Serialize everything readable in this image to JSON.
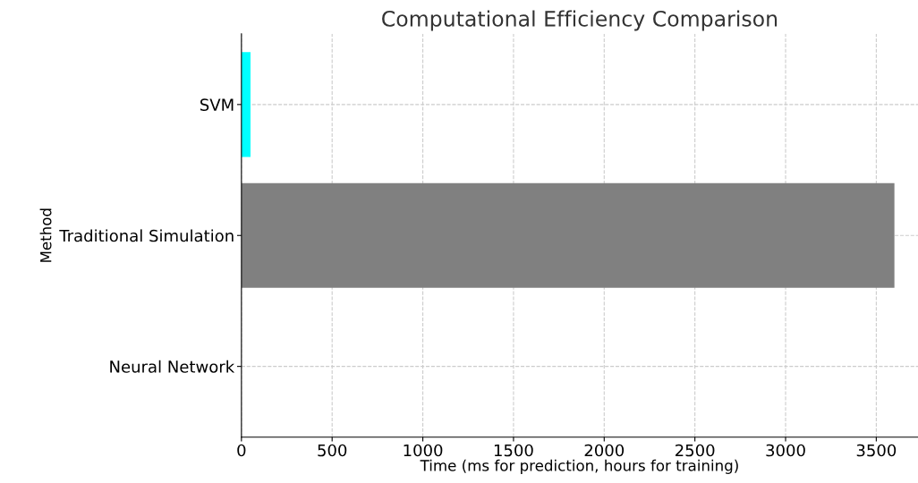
{
  "chart_data": {
    "type": "bar",
    "orientation": "horizontal",
    "title": "Computational Efficiency Comparison",
    "xlabel": "Time (ms for prediction, hours for training)",
    "ylabel": "Method",
    "categories": [
      "SVM",
      "Traditional Simulation",
      "Neural Network"
    ],
    "values": [
      50,
      3600,
      0
    ],
    "colors": [
      "#00ffff",
      "#808080",
      "#0000ff"
    ],
    "xlim": [
      0,
      3730
    ],
    "xticks": [
      0,
      500,
      1000,
      1500,
      2000,
      2500,
      3000,
      3500
    ],
    "grid": true
  }
}
